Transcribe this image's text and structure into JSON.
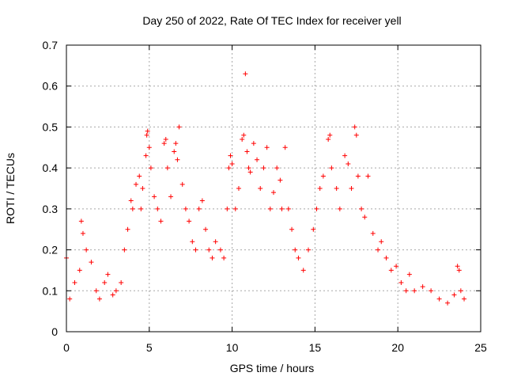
{
  "chart_data": {
    "type": "scatter",
    "title": "Day 250 of 2022, Rate Of TEC Index for receiver yell",
    "xlabel": "GPS time / hours",
    "ylabel": "ROTI / TECUs",
    "xlim": [
      0,
      25
    ],
    "ylim": [
      0,
      0.7
    ],
    "x_ticks": [
      "0",
      "5",
      "10",
      "15",
      "20",
      "25"
    ],
    "y_ticks": [
      "0",
      "0.1",
      "0.2",
      "0.3",
      "0.4",
      "0.5",
      "0.6",
      "0.7"
    ],
    "grid": true,
    "marker": "+",
    "color": "#ff0000",
    "series": [
      {
        "points": [
          [
            0.0,
            0.18
          ],
          [
            0.2,
            0.08
          ],
          [
            0.5,
            0.12
          ],
          [
            0.8,
            0.15
          ],
          [
            0.9,
            0.27
          ],
          [
            1.0,
            0.24
          ],
          [
            1.2,
            0.2
          ],
          [
            1.5,
            0.17
          ],
          [
            1.8,
            0.1
          ],
          [
            2.0,
            0.08
          ],
          [
            2.3,
            0.12
          ],
          [
            2.5,
            0.14
          ],
          [
            2.8,
            0.09
          ],
          [
            3.0,
            0.1
          ],
          [
            3.3,
            0.12
          ],
          [
            3.5,
            0.2
          ],
          [
            3.7,
            0.25
          ],
          [
            3.9,
            0.32
          ],
          [
            4.0,
            0.3
          ],
          [
            4.2,
            0.36
          ],
          [
            4.4,
            0.38
          ],
          [
            4.5,
            0.3
          ],
          [
            4.6,
            0.35
          ],
          [
            4.8,
            0.43
          ],
          [
            4.85,
            0.48
          ],
          [
            4.9,
            0.49
          ],
          [
            5.0,
            0.45
          ],
          [
            5.1,
            0.4
          ],
          [
            5.3,
            0.33
          ],
          [
            5.5,
            0.3
          ],
          [
            5.7,
            0.27
          ],
          [
            5.9,
            0.46
          ],
          [
            6.0,
            0.47
          ],
          [
            6.1,
            0.4
          ],
          [
            6.3,
            0.33
          ],
          [
            6.5,
            0.44
          ],
          [
            6.6,
            0.46
          ],
          [
            6.7,
            0.42
          ],
          [
            6.8,
            0.5
          ],
          [
            7.0,
            0.36
          ],
          [
            7.2,
            0.3
          ],
          [
            7.4,
            0.27
          ],
          [
            7.6,
            0.22
          ],
          [
            7.8,
            0.2
          ],
          [
            8.0,
            0.3
          ],
          [
            8.2,
            0.32
          ],
          [
            8.4,
            0.25
          ],
          [
            8.6,
            0.2
          ],
          [
            8.8,
            0.18
          ],
          [
            9.0,
            0.22
          ],
          [
            9.3,
            0.2
          ],
          [
            9.5,
            0.18
          ],
          [
            9.7,
            0.3
          ],
          [
            9.8,
            0.4
          ],
          [
            9.9,
            0.43
          ],
          [
            10.0,
            0.41
          ],
          [
            10.2,
            0.3
          ],
          [
            10.4,
            0.35
          ],
          [
            10.6,
            0.47
          ],
          [
            10.7,
            0.48
          ],
          [
            10.8,
            0.63
          ],
          [
            10.9,
            0.44
          ],
          [
            11.0,
            0.4
          ],
          [
            11.1,
            0.39
          ],
          [
            11.3,
            0.46
          ],
          [
            11.5,
            0.42
          ],
          [
            11.7,
            0.35
          ],
          [
            11.9,
            0.4
          ],
          [
            12.1,
            0.45
          ],
          [
            12.3,
            0.3
          ],
          [
            12.5,
            0.34
          ],
          [
            12.7,
            0.4
          ],
          [
            12.9,
            0.37
          ],
          [
            13.0,
            0.3
          ],
          [
            13.2,
            0.45
          ],
          [
            13.4,
            0.3
          ],
          [
            13.6,
            0.25
          ],
          [
            13.8,
            0.2
          ],
          [
            14.0,
            0.18
          ],
          [
            14.3,
            0.15
          ],
          [
            14.6,
            0.2
          ],
          [
            14.9,
            0.25
          ],
          [
            15.1,
            0.3
          ],
          [
            15.3,
            0.35
          ],
          [
            15.5,
            0.38
          ],
          [
            15.8,
            0.47
          ],
          [
            15.9,
            0.48
          ],
          [
            16.0,
            0.4
          ],
          [
            16.3,
            0.35
          ],
          [
            16.5,
            0.3
          ],
          [
            16.8,
            0.43
          ],
          [
            17.0,
            0.41
          ],
          [
            17.2,
            0.35
          ],
          [
            17.4,
            0.5
          ],
          [
            17.5,
            0.48
          ],
          [
            17.6,
            0.38
          ],
          [
            17.8,
            0.3
          ],
          [
            18.0,
            0.28
          ],
          [
            18.2,
            0.38
          ],
          [
            18.5,
            0.24
          ],
          [
            18.8,
            0.2
          ],
          [
            19.0,
            0.22
          ],
          [
            19.3,
            0.18
          ],
          [
            19.6,
            0.15
          ],
          [
            19.9,
            0.16
          ],
          [
            20.2,
            0.12
          ],
          [
            20.5,
            0.1
          ],
          [
            20.7,
            0.14
          ],
          [
            21.0,
            0.1
          ],
          [
            21.5,
            0.11
          ],
          [
            22.0,
            0.1
          ],
          [
            22.5,
            0.08
          ],
          [
            23.0,
            0.07
          ],
          [
            23.4,
            0.09
          ],
          [
            23.6,
            0.16
          ],
          [
            23.7,
            0.15
          ],
          [
            23.8,
            0.1
          ],
          [
            24.0,
            0.08
          ]
        ]
      }
    ]
  }
}
